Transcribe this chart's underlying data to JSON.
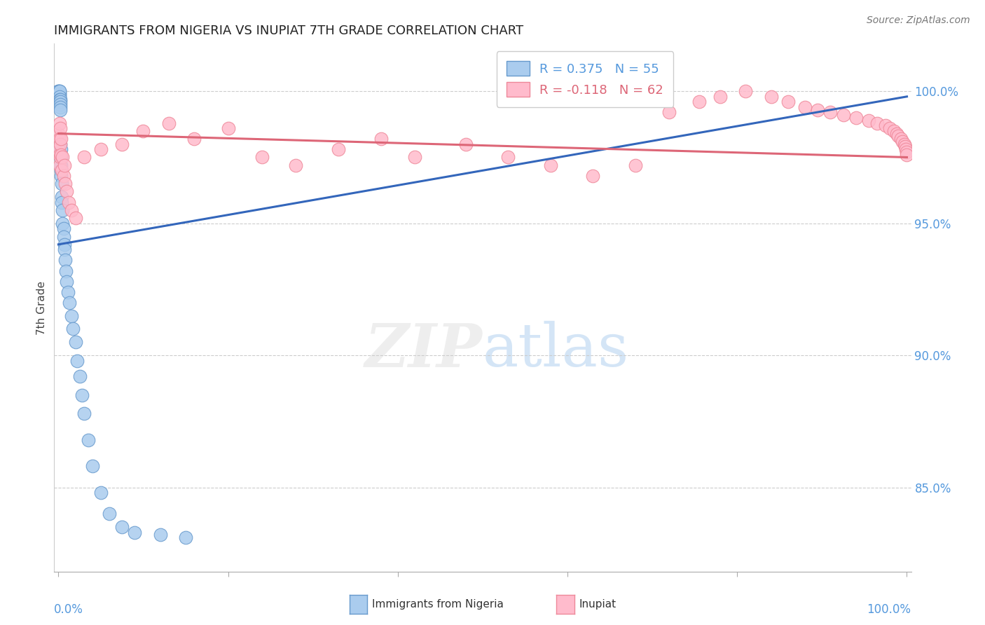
{
  "title": "IMMIGRANTS FROM NIGERIA VS INUPIAT 7TH GRADE CORRELATION CHART",
  "source": "Source: ZipAtlas.com",
  "ylabel": "7th Grade",
  "legend_label1": "Immigrants from Nigeria",
  "legend_label2": "Inupiat",
  "R1": 0.375,
  "N1": 55,
  "R2": -0.118,
  "N2": 62,
  "y_tick_vals": [
    0.85,
    0.9,
    0.95,
    1.0
  ],
  "y_tick_labels": [
    "85.0%",
    "90.0%",
    "95.0%",
    "100.0%"
  ],
  "x_tick_vals": [
    0.0,
    0.2,
    0.4,
    0.6,
    0.8,
    1.0
  ],
  "xlim": [
    -0.005,
    1.005
  ],
  "ylim": [
    0.818,
    1.018
  ],
  "blue_color": "#aaccee",
  "blue_edge_color": "#6699cc",
  "blue_line_color": "#3366bb",
  "pink_color": "#ffbbcc",
  "pink_edge_color": "#ee8899",
  "pink_line_color": "#dd6677",
  "axis_color": "#5599dd",
  "title_color": "#222222",
  "grid_color": "#cccccc",
  "blue_x": [
    0.0,
    0.0,
    0.0,
    0.0,
    0.0,
    0.001,
    0.001,
    0.001,
    0.001,
    0.001,
    0.001,
    0.001,
    0.001,
    0.001,
    0.002,
    0.002,
    0.002,
    0.002,
    0.002,
    0.002,
    0.002,
    0.003,
    0.003,
    0.003,
    0.003,
    0.003,
    0.004,
    0.004,
    0.004,
    0.005,
    0.005,
    0.006,
    0.006,
    0.007,
    0.007,
    0.008,
    0.009,
    0.01,
    0.011,
    0.013,
    0.015,
    0.017,
    0.02,
    0.022,
    0.025,
    0.028,
    0.03,
    0.035,
    0.04,
    0.05,
    0.06,
    0.075,
    0.09,
    0.12,
    0.15
  ],
  "blue_y": [
    0.997,
    0.999,
    0.999,
    1.0,
    1.0,
    0.998,
    0.999,
    0.999,
    1.0,
    1.0,
    0.998,
    0.997,
    0.996,
    0.995,
    0.997,
    0.996,
    0.995,
    0.994,
    0.993,
    0.98,
    0.975,
    0.978,
    0.975,
    0.972,
    0.97,
    0.968,
    0.965,
    0.96,
    0.958,
    0.955,
    0.95,
    0.948,
    0.945,
    0.942,
    0.94,
    0.936,
    0.932,
    0.928,
    0.924,
    0.92,
    0.915,
    0.91,
    0.905,
    0.898,
    0.892,
    0.885,
    0.878,
    0.868,
    0.858,
    0.848,
    0.84,
    0.835,
    0.833,
    0.832,
    0.831
  ],
  "pink_x": [
    0.0,
    0.0,
    0.001,
    0.001,
    0.001,
    0.001,
    0.002,
    0.002,
    0.002,
    0.003,
    0.003,
    0.004,
    0.005,
    0.006,
    0.007,
    0.008,
    0.01,
    0.012,
    0.015,
    0.02,
    0.03,
    0.05,
    0.075,
    0.1,
    0.13,
    0.16,
    0.2,
    0.24,
    0.28,
    0.33,
    0.38,
    0.42,
    0.48,
    0.53,
    0.58,
    0.63,
    0.68,
    0.72,
    0.755,
    0.78,
    0.81,
    0.84,
    0.86,
    0.88,
    0.895,
    0.91,
    0.925,
    0.94,
    0.955,
    0.965,
    0.975,
    0.98,
    0.985,
    0.988,
    0.99,
    0.993,
    0.995,
    0.997,
    0.998,
    0.999,
    1.0,
    1.0
  ],
  "pink_y": [
    0.984,
    0.978,
    0.988,
    0.982,
    0.976,
    0.972,
    0.986,
    0.98,
    0.975,
    0.982,
    0.976,
    0.97,
    0.975,
    0.968,
    0.972,
    0.965,
    0.962,
    0.958,
    0.955,
    0.952,
    0.975,
    0.978,
    0.98,
    0.985,
    0.988,
    0.982,
    0.986,
    0.975,
    0.972,
    0.978,
    0.982,
    0.975,
    0.98,
    0.975,
    0.972,
    0.968,
    0.972,
    0.992,
    0.996,
    0.998,
    1.0,
    0.998,
    0.996,
    0.994,
    0.993,
    0.992,
    0.991,
    0.99,
    0.989,
    0.988,
    0.987,
    0.986,
    0.985,
    0.984,
    0.983,
    0.982,
    0.981,
    0.98,
    0.979,
    0.978,
    0.977,
    0.976
  ],
  "blue_trend": [
    0.942,
    0.998
  ],
  "pink_trend": [
    0.984,
    0.975
  ]
}
